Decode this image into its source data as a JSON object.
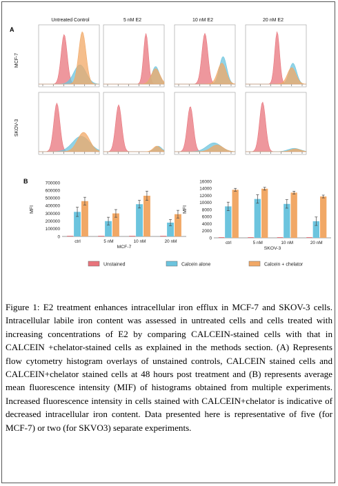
{
  "figure": {
    "panel_a_letter": "A",
    "panel_b_letter": "B",
    "columns": [
      "Untreated Control",
      "5 nM E2",
      "10 nM E2",
      "20 nM E2"
    ],
    "rows": [
      "MCF-7",
      "SKOV-3"
    ],
    "colors": {
      "unstained": "#e8747c",
      "calcein": "#6cc4de",
      "chelator": "#f1a866"
    },
    "legend": [
      {
        "label": "Unstained",
        "color": "#e8747c"
      },
      {
        "label": "Calcein alone",
        "color": "#6cc4de"
      },
      {
        "label": "Calcein + chelator",
        "color": "#f1a866"
      }
    ]
  },
  "chart_data": [
    {
      "type": "bar",
      "panel": "B",
      "xlabel": "MCF-7",
      "ylabel": "MFI",
      "categories": [
        "ctrl",
        "5 nM",
        "10 nM",
        "20 nM"
      ],
      "ylim": [
        0,
        700000
      ],
      "yticks": [
        "0",
        "100000",
        "200000",
        "300000",
        "400000",
        "500000",
        "600000",
        "700000"
      ],
      "series": [
        {
          "color": "#6cc4de",
          "values": [
            320000,
            200000,
            420000,
            180000
          ],
          "errors": [
            60000,
            50000,
            50000,
            40000
          ]
        },
        {
          "color": "#f1a866",
          "values": [
            460000,
            300000,
            530000,
            290000
          ],
          "errors": [
            50000,
            50000,
            60000,
            50000
          ]
        }
      ]
    },
    {
      "type": "bar",
      "panel": "B",
      "xlabel": "SKOV-3",
      "ylabel": "MFI",
      "categories": [
        "ctrl",
        "5 nM",
        "10 nM",
        "20 nM"
      ],
      "ylim": [
        0,
        16000
      ],
      "yticks": [
        "0",
        "2000",
        "4000",
        "6000",
        "8000",
        "10000",
        "12000",
        "14000",
        "16000"
      ],
      "series": [
        {
          "color": "#6cc4de",
          "values": [
            8900,
            11000,
            9600,
            4700
          ],
          "errors": [
            1200,
            1200,
            1200,
            1200
          ]
        },
        {
          "color": "#f1a866",
          "values": [
            13600,
            13900,
            12800,
            11700
          ],
          "errors": [
            400,
            400,
            400,
            400
          ]
        }
      ]
    }
  ],
  "caption": {
    "label": "Figure 1:",
    "text": "E2 treatment enhances intracellular iron efflux in MCF-7 and SKOV-3 cells. Intracellular labile iron content was assessed in untreated cells and cells treated with increasing concentrations of E2 by comparing CALCEIN-stained cells with that in CALCEIN +chelator-stained cells as explained in the methods section. (A) Represents flow cytometry histogram overlays of unstained controls, CALCEIN stained cells and CALCEIN+chelator stained cells at 48 hours post treatment and (B) represents average mean fluorescence intensity (MIF) of histograms obtained from multiple experiments. Increased fluorescence intensity in cells stained with CALCEIN+chelator is indicative of decreased intracellular iron content. Data presented here is representative of five (for MCF-7) or two (for SKVO3) separate experiments."
  }
}
